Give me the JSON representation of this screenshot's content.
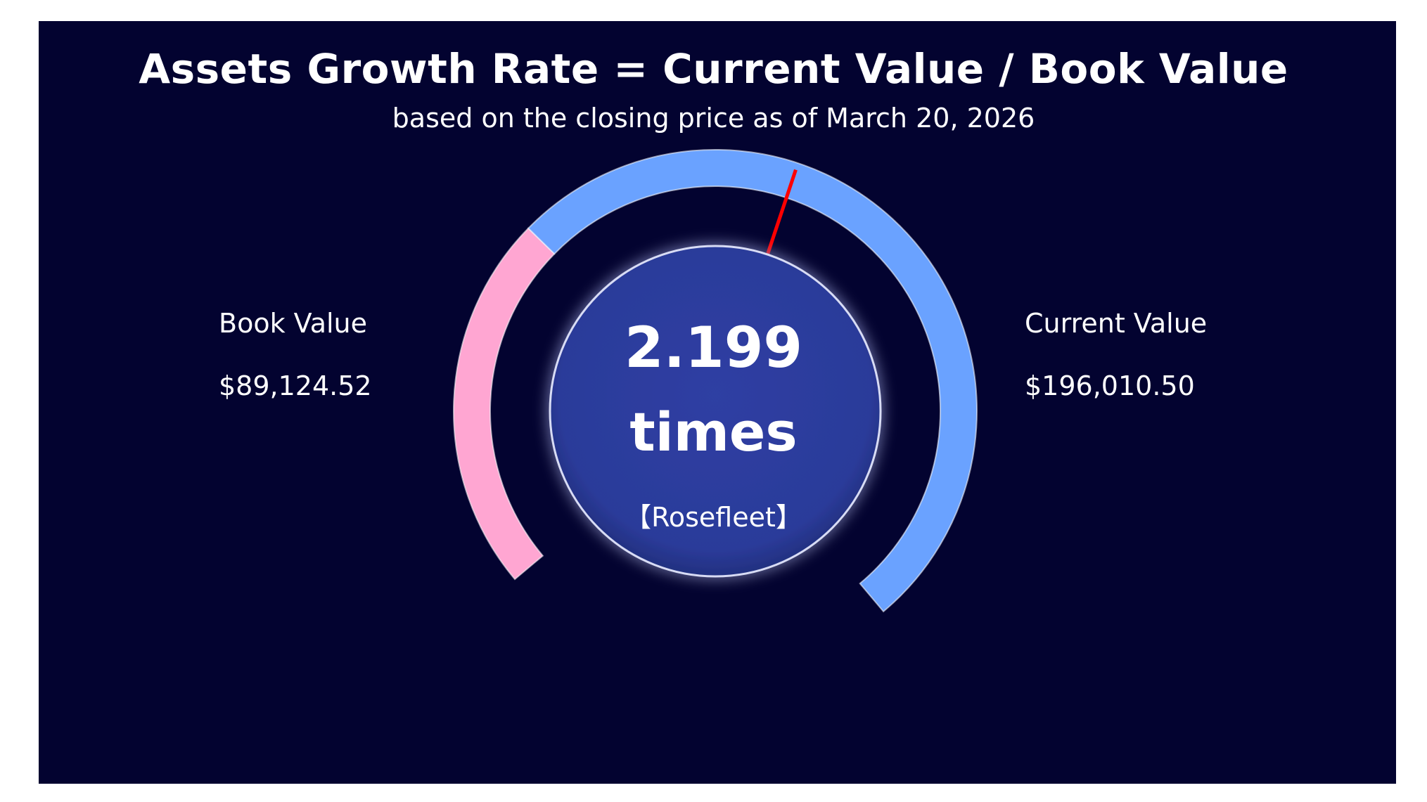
{
  "chart_data": {
    "type": "gauge",
    "title": "Assets Growth Rate = Current Value / Book Value",
    "subtitle": "based on the closing price as of March 20, 2026",
    "series": [
      {
        "name": "Book Value",
        "display": "$89,124.52",
        "value": 89124.52,
        "color": "#ffa6d2"
      },
      {
        "name": "Current Value",
        "display": "$196,010.50",
        "value": 196010.5,
        "color": "#6aa2ff"
      }
    ],
    "ratio": 2.199,
    "ratio_display": "2.199",
    "unit": "times",
    "company": "【Rosefleet】",
    "needle_color": "#ff0000",
    "center_color": "#2b3b9a",
    "background": "#030330"
  }
}
